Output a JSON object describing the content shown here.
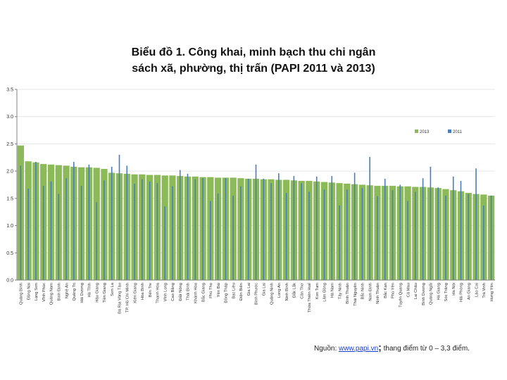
{
  "title_line1": "Biểu đồ 1. Công khai, minh bạch thu chi ngân",
  "title_line2": "sách xã, phường, thị trấn (PAPI 2011 và 2013)",
  "source": {
    "prefix": "Nguồn:",
    "link": "www.papi.vn",
    "semicolon": ";",
    "scale_note": "thang điểm từ 0 – 3,3 điểm."
  },
  "colors": {
    "s2013": "#8dba58",
    "s2011": "#4a7ebb",
    "axis": "#808080"
  },
  "chart_data": {
    "type": "bar",
    "title": "Biểu đồ 1. Công khai, minh bạch thu chi ngân sách xã, phường, thị trấn (PAPI 2011 và 2013)",
    "xlabel": "",
    "ylabel": "",
    "ylim": [
      0,
      3.5
    ],
    "yticks": [
      "0.0",
      "0.5",
      "1.0",
      "1.5",
      "2.0",
      "2.5",
      "3.0",
      "3.5"
    ],
    "legend_position": "top-right",
    "categories": [
      "Quảng Bình",
      "Đồng Nai",
      "Lạng Sơn",
      "Vĩnh Phúc",
      "Quảng Nam",
      "Bình Định",
      "Nghệ An",
      "Quảng Trị",
      "Hải Dương",
      "Hà Tĩnh",
      "Hậu Giang",
      "Tiền Giang",
      "Sơn La",
      "Bà Rịa Vũng Tàu",
      "TP. Hồ Chí Minh",
      "Kiên Giang",
      "Hòa Bình",
      "Bến Tre",
      "Thanh Hóa",
      "Vĩnh Long",
      "Cao Bằng",
      "Đắk Nông",
      "Thái Bình",
      "Khánh Hòa",
      "Bắc Giang",
      "Phú Thọ",
      "Yên Bái",
      "Đồng Tháp",
      "Bạc Liêu",
      "Điện Biên",
      "Gia Lai",
      "Bình Phước",
      "Gia Lai",
      "Quảng Ninh",
      "Long An",
      "Ninh Bình",
      "Đắk Lắk",
      "Cần Thơ",
      "Thừa Thiên Huế",
      "Kon Tum",
      "Lâm Đồng",
      "Hà Nam",
      "Tây Ninh",
      "Bình Thuận",
      "Thái Nguyên",
      "Bắc Ninh",
      "Nam Định",
      "Ninh Thuận",
      "Bắc Kạn",
      "Phú Yên",
      "Tuyên Quang",
      "Cà Mau",
      "Lai Châu",
      "Bình Dương",
      "Quảng Ngãi",
      "Hà Giang",
      "Sóc Trăng",
      "Hà Nội",
      "Hải Phòng",
      "An Giang",
      "Lào Cai",
      "Trà Vinh",
      "Hưng Yên"
    ],
    "series": [
      {
        "name": "2013",
        "values": [
          2.47,
          2.18,
          2.16,
          2.13,
          2.12,
          2.11,
          2.1,
          2.08,
          2.07,
          2.07,
          2.06,
          2.04,
          1.97,
          1.96,
          1.95,
          1.94,
          1.94,
          1.93,
          1.93,
          1.92,
          1.92,
          1.91,
          1.9,
          1.9,
          1.89,
          1.89,
          1.88,
          1.88,
          1.88,
          1.87,
          1.86,
          1.86,
          1.85,
          1.85,
          1.84,
          1.84,
          1.83,
          1.82,
          1.82,
          1.81,
          1.8,
          1.79,
          1.78,
          1.77,
          1.76,
          1.75,
          1.74,
          1.73,
          1.73,
          1.73,
          1.72,
          1.72,
          1.71,
          1.71,
          1.7,
          1.69,
          1.67,
          1.65,
          1.63,
          1.6,
          1.58,
          1.57,
          1.55
        ]
      },
      {
        "name": "2011",
        "values": [
          2.1,
          1.68,
          2.17,
          1.73,
          1.81,
          1.58,
          1.87,
          2.17,
          1.73,
          2.12,
          1.43,
          1.83,
          2.08,
          2.3,
          2.1,
          1.77,
          1.85,
          1.81,
          1.78,
          1.35,
          1.72,
          2.02,
          1.95,
          1.85,
          1.87,
          1.45,
          1.59,
          1.87,
          1.55,
          1.72,
          1.86,
          2.12,
          1.86,
          1.78,
          1.96,
          1.6,
          1.91,
          1.78,
          1.62,
          1.9,
          1.66,
          1.91,
          1.37,
          1.66,
          1.97,
          1.69,
          2.26,
          1.54,
          1.86,
          1.65,
          1.75,
          1.45,
          1.62,
          1.87,
          2.08,
          1.7,
          1.55,
          1.9,
          1.82,
          1.58,
          2.05,
          1.37,
          1.55
        ]
      }
    ]
  }
}
